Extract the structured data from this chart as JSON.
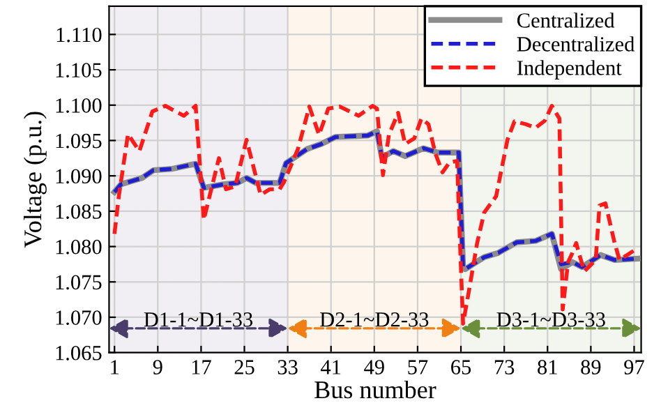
{
  "chart_data": {
    "type": "line",
    "xlabel": "Bus number",
    "ylabel": "Voltage (p.u.)",
    "xlim": [
      0,
      98.3
    ],
    "xticks": [
      1,
      9,
      17,
      25,
      33,
      41,
      49,
      57,
      65,
      73,
      81,
      89,
      97
    ],
    "ylim": [
      1.065,
      1.114
    ],
    "yticks": [
      1.065,
      {
        "value": 1.07,
        "label": "1.070"
      },
      1.075,
      {
        "value": 1.08,
        "label": "1.080"
      },
      1.085,
      {
        "value": 1.09,
        "label": "1.090"
      },
      1.095,
      {
        "value": 1.1,
        "label": "1.100"
      },
      1.105,
      {
        "value": 1.11,
        "label": "1.110"
      }
    ],
    "grid": true,
    "legend": "top right",
    "bands": [
      {
        "axis": "x",
        "from": 0,
        "to": 33,
        "label": "D1-1~D1-33",
        "color": "#4b3d6b"
      },
      {
        "axis": "x",
        "from": 33,
        "to": 65,
        "label": "D2-1~D2-33",
        "color": "#f07f14"
      },
      {
        "axis": "x",
        "from": 65,
        "to": 98.3,
        "label": "D3-1~D3-33",
        "color": "#6b8e3a"
      }
    ],
    "series": [
      {
        "name": "Centralized",
        "color": "#8c8c8c",
        "line_style": "solid",
        "x": [
          1,
          2.2,
          6.1,
          8.2,
          11.7,
          16,
          17.5,
          21.1,
          23.7,
          25.4,
          27.1,
          31.5,
          32.7,
          36.6,
          39.2,
          41.8,
          47.8,
          49.5,
          50.4,
          52.5,
          54.7,
          58.1,
          60.7,
          64.6,
          65.4,
          65.8,
          69.3,
          71.9,
          75.3,
          78.8,
          81.8,
          83.5,
          85.6,
          87.4,
          90.8,
          93.4,
          97.7
        ],
        "values": [
          1.0877,
          1.0888,
          1.0897,
          1.0908,
          1.091,
          1.0917,
          1.0883,
          1.0888,
          1.089,
          1.0897,
          1.089,
          1.089,
          1.0918,
          1.0938,
          1.0945,
          1.0955,
          1.0957,
          1.0963,
          1.0926,
          1.0935,
          1.0928,
          1.0939,
          1.0933,
          1.0933,
          1.0771,
          1.0768,
          1.0785,
          1.0791,
          1.0806,
          1.0808,
          1.0818,
          1.0768,
          1.0778,
          1.0771,
          1.0788,
          1.0781,
          1.0783
        ]
      },
      {
        "name": "Decentralized",
        "color": "#1f1fd0",
        "line_style": "dashed",
        "x": [
          1,
          2.2,
          6.1,
          8.2,
          11.7,
          16,
          17.5,
          21.1,
          23.7,
          25.4,
          27.1,
          31.5,
          32.7,
          36.6,
          39.2,
          41.8,
          47.8,
          49.5,
          50.4,
          52.5,
          54.7,
          58.1,
          60.7,
          64.6,
          65.4,
          65.8,
          69.3,
          71.9,
          75.3,
          78.8,
          81.8,
          83.5,
          85.6,
          87.4,
          90.8,
          93.4,
          97.7
        ],
        "values": [
          1.0877,
          1.0888,
          1.0897,
          1.0908,
          1.091,
          1.0917,
          1.0883,
          1.0888,
          1.089,
          1.0897,
          1.089,
          1.089,
          1.0918,
          1.0938,
          1.0945,
          1.0955,
          1.0957,
          1.0963,
          1.0926,
          1.0935,
          1.0928,
          1.0939,
          1.0933,
          1.0933,
          1.0771,
          1.0768,
          1.0785,
          1.0791,
          1.0806,
          1.0808,
          1.0818,
          1.0775,
          1.0778,
          1.0771,
          1.0788,
          1.0781,
          1.0783
        ]
      },
      {
        "name": "Independent",
        "color": "#ff1a1a",
        "line_style": "dashed",
        "x": [
          1,
          1.8,
          3.5,
          5.6,
          8,
          10.4,
          13.8,
          16,
          17.5,
          20.3,
          21.6,
          23.3,
          25.4,
          28,
          29.7,
          31.5,
          32.3,
          34.9,
          37,
          38.8,
          40.5,
          42.6,
          46.1,
          48.7,
          49.5,
          50.6,
          51.7,
          53.4,
          54.7,
          56.4,
          57.7,
          59,
          60.3,
          61.6,
          62.9,
          64.3,
          64.8,
          65.4,
          66.5,
          68,
          69.3,
          71.5,
          73.6,
          74.9,
          77,
          78.8,
          80.5,
          81.8,
          83.2,
          83.8,
          84.8,
          85.6,
          86.3,
          86.9,
          87.8,
          89.9,
          90.6,
          91.7,
          93.4,
          94.3,
          97.7
        ],
        "values": [
          1.0818,
          1.0871,
          1.0959,
          1.0935,
          1.0991,
          1.0999,
          1.0985,
          1.0999,
          1.0838,
          1.0925,
          1.0881,
          1.0885,
          1.0951,
          1.0873,
          1.0881,
          1.0881,
          1.0891,
          1.0938,
          1.0998,
          1.0958,
          1.0995,
          1.0998,
          1.0985,
          1.0999,
          1.0995,
          1.0901,
          1.0958,
          1.0989,
          1.0945,
          1.0953,
          1.0981,
          1.0973,
          1.0931,
          1.0905,
          1.0919,
          1.0921,
          1.0811,
          1.0691,
          1.0738,
          1.0805,
          1.0848,
          1.0871,
          1.0951,
          1.0977,
          1.0973,
          1.0968,
          1.0978,
          1.0999,
          1.0981,
          1.0711,
          1.0778,
          1.0791,
          1.0805,
          1.0788,
          1.0765,
          1.0781,
          1.0858,
          1.0861,
          1.0805,
          1.0781,
          1.0798
        ]
      }
    ]
  }
}
